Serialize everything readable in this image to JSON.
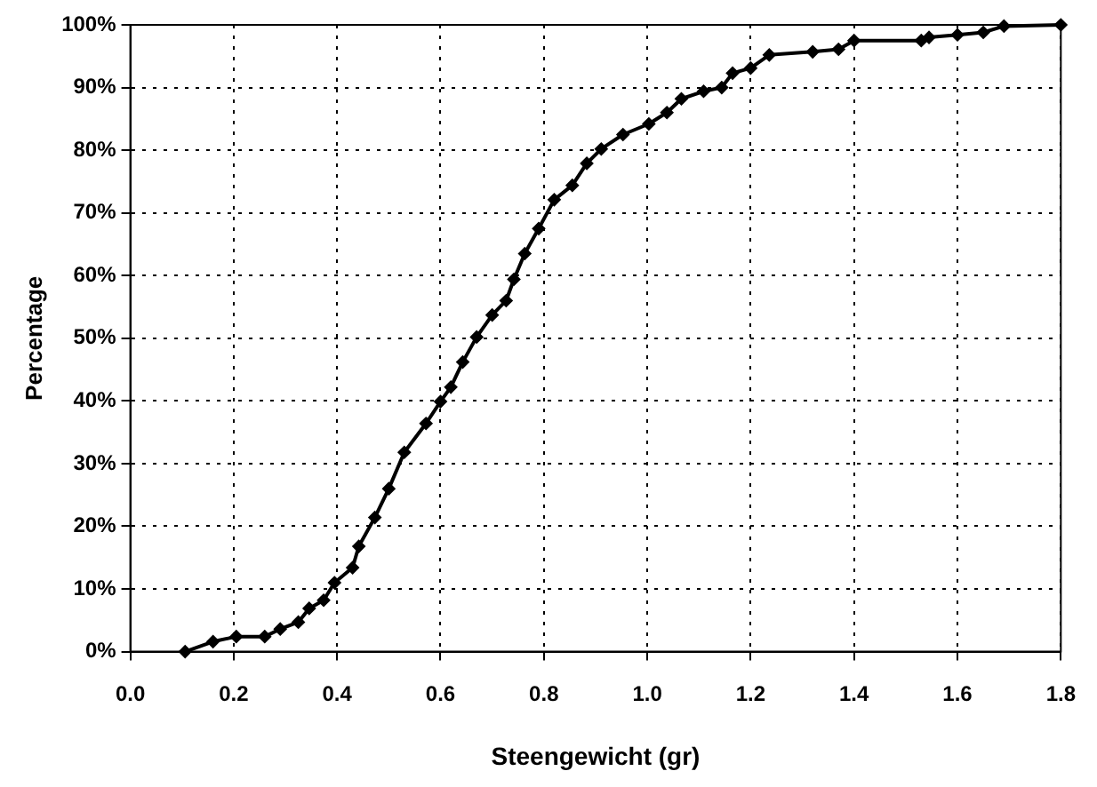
{
  "chart_data": {
    "type": "line",
    "xlabel": "Steengewicht (gr)",
    "ylabel": "Percentage",
    "x": [
      0.106,
      0.16,
      0.205,
      0.26,
      0.29,
      0.325,
      0.346,
      0.374,
      0.395,
      0.43,
      0.442,
      0.473,
      0.5,
      0.53,
      0.572,
      0.6,
      0.62,
      0.643,
      0.67,
      0.7,
      0.727,
      0.742,
      0.763,
      0.79,
      0.82,
      0.855,
      0.883,
      0.911,
      0.953,
      1.003,
      1.038,
      1.066,
      1.109,
      1.144,
      1.165,
      1.2,
      1.236,
      1.32,
      1.37,
      1.4,
      1.53,
      1.545,
      1.6,
      1.65,
      1.69,
      1.8
    ],
    "series": [
      {
        "color": "#000000",
        "values": [
          0,
          1.6,
          2.4,
          2.4,
          3.6,
          4.7,
          6.9,
          8.2,
          11,
          13.4,
          16.8,
          21.4,
          26,
          31.8,
          36.4,
          39.9,
          42.2,
          46.2,
          50.2,
          53.7,
          56,
          59.4,
          63.5,
          67.5,
          72.1,
          74.4,
          77.9,
          80.2,
          82.5,
          84.2,
          86,
          88.2,
          89.4,
          90,
          92.3,
          93.1,
          95.2,
          95.7,
          96.1,
          97.5,
          97.5,
          98,
          98.4,
          98.8,
          99.8,
          100
        ]
      }
    ],
    "xlim": [
      0,
      1.8
    ],
    "xticks": [
      {
        "value": 0,
        "label": "0.0"
      },
      {
        "value": 0.2,
        "label": "0.2"
      },
      {
        "value": 0.4,
        "label": "0.4"
      },
      {
        "value": 0.6,
        "label": "0.6"
      },
      {
        "value": 0.8,
        "label": "0.8"
      },
      {
        "value": 1,
        "label": "1.0"
      },
      {
        "value": 1.2,
        "label": "1.2"
      },
      {
        "value": 1.4,
        "label": "1.4"
      },
      {
        "value": 1.6,
        "label": "1.6"
      },
      {
        "value": 1.8,
        "label": "1.8"
      }
    ],
    "ylim": [
      0,
      100
    ],
    "yticks": [
      {
        "value": 0,
        "label": "0%"
      },
      {
        "value": 10,
        "label": "10%"
      },
      {
        "value": 20,
        "label": "20%"
      },
      {
        "value": 30,
        "label": "30%"
      },
      {
        "value": 40,
        "label": "40%"
      },
      {
        "value": 50,
        "label": "50%"
      },
      {
        "value": 60,
        "label": "60%"
      },
      {
        "value": 70,
        "label": "70%"
      },
      {
        "value": 80,
        "label": "80%"
      },
      {
        "value": 90,
        "label": "90%"
      },
      {
        "value": 100,
        "label": "100%"
      }
    ],
    "grid": true,
    "legend": false,
    "marker": "diamond",
    "line_style": "solid"
  }
}
